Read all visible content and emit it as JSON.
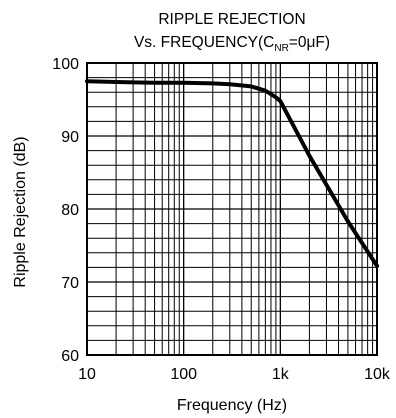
{
  "chart_data": {
    "type": "line",
    "title_line1": "RIPPLE REJECTION",
    "title_line2_prefix": "Vs. FREQUENCY(C",
    "title_line2_subscript": "NR",
    "title_line2_suffix": "=0μF)",
    "xlabel": "Frequency (Hz)",
    "ylabel": "Ripple Rejection (dB)",
    "x_scale": "log",
    "xlim": [
      10,
      10000
    ],
    "ylim": [
      60,
      100
    ],
    "x_ticks": [
      10,
      100,
      1000,
      10000
    ],
    "x_tick_labels": [
      "10",
      "100",
      "1k",
      "10k"
    ],
    "y_ticks": [
      60,
      70,
      80,
      90,
      100
    ],
    "y_tick_labels": [
      "60",
      "70",
      "80",
      "90",
      "100"
    ],
    "grid": true,
    "series": [
      {
        "color": "#000000",
        "x": [
          10,
          20,
          50,
          100,
          200,
          300,
          500,
          700,
          900,
          1000,
          2000,
          5000,
          10000
        ],
        "y": [
          97.5,
          97.4,
          97.3,
          97.3,
          97.2,
          97.1,
          96.8,
          96.2,
          95.3,
          94.8,
          87.3,
          78.3,
          72.2
        ]
      }
    ]
  }
}
